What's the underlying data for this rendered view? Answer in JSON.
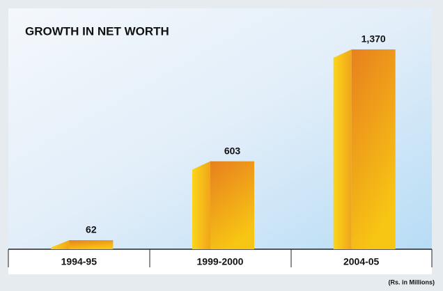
{
  "chart_data": {
    "type": "bar",
    "title": "GROWTH IN NET WORTH",
    "note": "(Rs. in Millions)",
    "categories": [
      "1994-95",
      "1999-2000",
      "2004-05"
    ],
    "values": [
      62,
      603,
      1370
    ],
    "value_labels": [
      "62",
      "603",
      "1,370"
    ],
    "color": "#ea8a1c"
  }
}
